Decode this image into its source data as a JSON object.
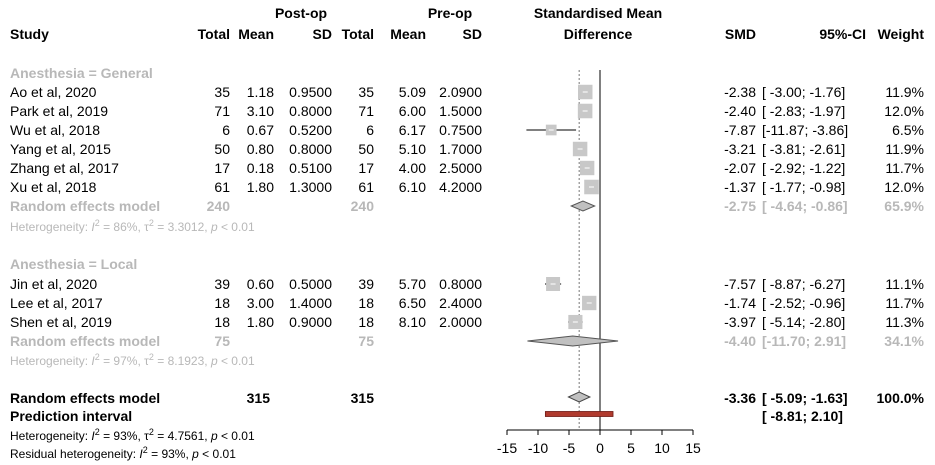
{
  "header": {
    "study": "Study",
    "postop": "Post-op",
    "preop": "Pre-op",
    "total": "Total",
    "mean": "Mean",
    "sd": "SD",
    "smd_line1": "Standardised Mean",
    "smd_line2": "Difference",
    "smd": "SMD",
    "ci": "95%-CI",
    "weight": "Weight"
  },
  "groups": [
    {
      "label": "Anesthesia = General",
      "studies": [
        {
          "name": "Ao et al, 2020",
          "post_total": "35",
          "post_mean": "1.18",
          "post_sd": "0.9500",
          "pre_total": "35",
          "pre_mean": "5.09",
          "pre_sd": "2.0900",
          "smd": "-2.38",
          "ci": "[ -3.00; -1.76]",
          "weight": "11.9%"
        },
        {
          "name": "Park et al, 2019",
          "post_total": "71",
          "post_mean": "3.10",
          "post_sd": "0.8000",
          "pre_total": "71",
          "pre_mean": "6.00",
          "pre_sd": "1.5000",
          "smd": "-2.40",
          "ci": "[ -2.83; -1.97]",
          "weight": "12.0%"
        },
        {
          "name": "Wu et al, 2018",
          "post_total": "6",
          "post_mean": "0.67",
          "post_sd": "0.5200",
          "pre_total": "6",
          "pre_mean": "6.17",
          "pre_sd": "0.7500",
          "smd": "-7.87",
          "ci": "[-11.87; -3.86]",
          "weight": "6.5%"
        },
        {
          "name": "Yang et al, 2015",
          "post_total": "50",
          "post_mean": "0.80",
          "post_sd": "0.8000",
          "pre_total": "50",
          "pre_mean": "5.10",
          "pre_sd": "1.7000",
          "smd": "-3.21",
          "ci": "[ -3.81; -2.61]",
          "weight": "11.9%"
        },
        {
          "name": "Zhang et al, 2017",
          "post_total": "17",
          "post_mean": "0.18",
          "post_sd": "0.5100",
          "pre_total": "17",
          "pre_mean": "4.00",
          "pre_sd": "2.5000",
          "smd": "-2.07",
          "ci": "[ -2.92; -1.22]",
          "weight": "11.7%"
        },
        {
          "name": "Xu et al, 2018",
          "post_total": "61",
          "post_mean": "1.80",
          "post_sd": "1.3000",
          "pre_total": "61",
          "pre_mean": "6.10",
          "pre_sd": "4.2000",
          "smd": "-1.37",
          "ci": "[ -1.77; -0.98]",
          "weight": "12.0%"
        }
      ],
      "model": {
        "label": "Random effects model",
        "post_total": "240",
        "pre_total": "240",
        "smd": "-2.75",
        "ci": "[ -4.64; -0.86]",
        "weight": "65.9%"
      },
      "heterogeneity": {
        "prefix": "Heterogeneity: ",
        "i2_sym": "I",
        "i2_val": " = 86%, ",
        "tau_sym": "τ",
        "tau_val": " = 3.3012, ",
        "p_sym": "p",
        "p_val": " < 0.01"
      }
    },
    {
      "label": "Anesthesia = Local",
      "studies": [
        {
          "name": "Jin et al, 2020",
          "post_total": "39",
          "post_mean": "0.60",
          "post_sd": "0.5000",
          "pre_total": "39",
          "pre_mean": "5.70",
          "pre_sd": "0.8000",
          "smd": "-7.57",
          "ci": "[ -8.87; -6.27]",
          "weight": "11.1%"
        },
        {
          "name": "Lee et al, 2017",
          "post_total": "18",
          "post_mean": "3.00",
          "post_sd": "1.4000",
          "pre_total": "18",
          "pre_mean": "6.50",
          "pre_sd": "2.4000",
          "smd": "-1.74",
          "ci": "[ -2.52; -0.96]",
          "weight": "11.7%"
        },
        {
          "name": "Shen et al, 2019",
          "post_total": "18",
          "post_mean": "1.80",
          "post_sd": "0.9000",
          "pre_total": "18",
          "pre_mean": "8.10",
          "pre_sd": "2.0000",
          "smd": "-3.97",
          "ci": "[ -5.14; -2.80]",
          "weight": "11.3%"
        }
      ],
      "model": {
        "label": "Random effects model",
        "post_total": "75",
        "pre_total": "75",
        "smd": "-4.40",
        "ci": "[-11.70;  2.91]",
        "weight": "34.1%"
      },
      "heterogeneity": {
        "prefix": "Heterogeneity: ",
        "i2_sym": "I",
        "i2_val": " = 97%, ",
        "tau_sym": "τ",
        "tau_val": " = 8.1923, ",
        "p_sym": "p",
        "p_val": " < 0.01"
      }
    }
  ],
  "overall": {
    "model": {
      "label": "Random effects model",
      "post_total": "315",
      "pre_total": "315",
      "smd": "-3.36",
      "ci": "[ -5.09; -1.63]",
      "weight": "100.0%"
    },
    "prediction": {
      "label": "Prediction interval",
      "ci": "[ -8.81;  2.10]"
    },
    "heterogeneity": {
      "prefix": "Heterogeneity: ",
      "i2_sym": "I",
      "i2_val": " = 93%, ",
      "tau_sym": "τ",
      "tau_val": " = 4.7561, ",
      "p_sym": "p",
      "p_val": " < 0.01"
    },
    "residual": {
      "prefix": "Residual heterogeneity: ",
      "i2_sym": "I",
      "i2_val": " = 93%, ",
      "p_sym": "p",
      "p_val": " < 0.01"
    }
  },
  "chart_data": {
    "type": "forest",
    "xlim": [
      -15,
      15
    ],
    "ticks": [
      "-15",
      "-10",
      "-5",
      "0",
      "5",
      "10",
      "15"
    ],
    "tick_values": [
      -15,
      -10,
      -5,
      0,
      5,
      10,
      15
    ],
    "null_line": 0,
    "pooled_reference": -3.36,
    "studies": [
      {
        "name": "Ao et al, 2020",
        "smd": -2.38,
        "lower": -3.0,
        "upper": -1.76,
        "weight": 11.9
      },
      {
        "name": "Park et al, 2019",
        "smd": -2.4,
        "lower": -2.83,
        "upper": -1.97,
        "weight": 12.0
      },
      {
        "name": "Wu et al, 2018",
        "smd": -7.87,
        "lower": -11.87,
        "upper": -3.86,
        "weight": 6.5
      },
      {
        "name": "Yang et al, 2015",
        "smd": -3.21,
        "lower": -3.81,
        "upper": -2.61,
        "weight": 11.9
      },
      {
        "name": "Zhang et al, 2017",
        "smd": -2.07,
        "lower": -2.92,
        "upper": -1.22,
        "weight": 11.7
      },
      {
        "name": "Xu et al, 2018",
        "smd": -1.37,
        "lower": -1.77,
        "upper": -0.98,
        "weight": 12.0
      },
      {
        "name": "Jin et al, 2020",
        "smd": -7.57,
        "lower": -8.87,
        "upper": -6.27,
        "weight": 11.1
      },
      {
        "name": "Lee et al, 2017",
        "smd": -1.74,
        "lower": -2.52,
        "upper": -0.96,
        "weight": 11.7
      },
      {
        "name": "Shen et al, 2019",
        "smd": -3.97,
        "lower": -5.14,
        "upper": -2.8,
        "weight": 11.3
      }
    ],
    "subgroup_models": [
      {
        "group": "Anesthesia = General",
        "smd": -2.75,
        "lower": -4.64,
        "upper": -0.86,
        "weight": 65.9
      },
      {
        "group": "Anesthesia = Local",
        "smd": -4.4,
        "lower": -11.7,
        "upper": 2.91,
        "weight": 34.1
      }
    ],
    "overall_model": {
      "smd": -3.36,
      "lower": -5.09,
      "upper": -1.63,
      "weight": 100.0
    },
    "prediction_interval": {
      "lower": -8.81,
      "upper": 2.1
    },
    "colors": {
      "box": "#c8c8c8",
      "diamond": "#c0c0c0",
      "prediction": "#b03a2e",
      "grey_text": "#b8b8b8"
    }
  }
}
